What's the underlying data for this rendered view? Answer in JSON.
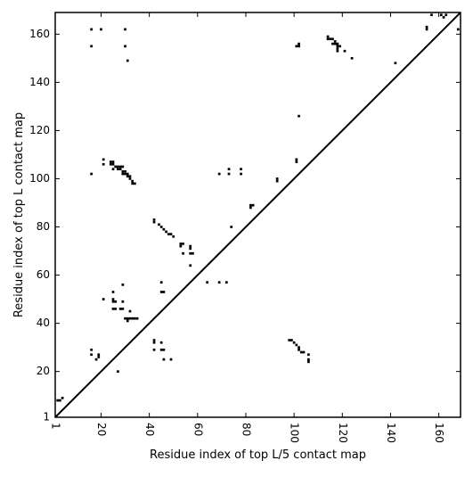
{
  "chart_data": {
    "type": "heatmap",
    "subtype": "binary contact map",
    "title": "",
    "xlabel": "Residue index of top L/5 contact map",
    "ylabel": "Residue index of top L contact map",
    "xlim": [
      1,
      169
    ],
    "ylim": [
      1,
      169
    ],
    "xticks": [
      1,
      20,
      40,
      60,
      80,
      100,
      120,
      140,
      160
    ],
    "yticks": [
      1,
      20,
      40,
      60,
      80,
      100,
      120,
      140,
      160
    ],
    "xtick_labels": [
      "1",
      "20",
      "40",
      "60",
      "80",
      "100",
      "120",
      "140",
      "160"
    ],
    "ytick_labels": [
      "1",
      "20",
      "40",
      "60",
      "80",
      "100",
      "120",
      "140",
      "160"
    ],
    "x_tick_label_rotation": "vertical",
    "diagonal_line": true,
    "legend": "none",
    "grid": false,
    "colors": {
      "contact": "#000000",
      "background": "#ffffff",
      "diagonal": "#000000"
    },
    "contacts_lower_triangle_L5": [
      [
        98,
        33
      ],
      [
        99,
        33
      ],
      [
        100,
        32
      ],
      [
        101,
        31
      ],
      [
        102,
        30
      ],
      [
        102,
        29
      ],
      [
        103,
        28
      ],
      [
        104,
        28
      ],
      [
        106,
        27
      ],
      [
        106,
        25
      ],
      [
        106,
        24
      ],
      [
        2,
        8
      ],
      [
        3,
        8
      ],
      [
        4,
        9
      ]
    ],
    "contacts_upper_triangle_L": [
      [
        24,
        107
      ],
      [
        25,
        107
      ],
      [
        24,
        106
      ],
      [
        25,
        106
      ],
      [
        26,
        105
      ],
      [
        27,
        105
      ],
      [
        28,
        105
      ],
      [
        29,
        105
      ],
      [
        27,
        104
      ],
      [
        28,
        104
      ],
      [
        29,
        103
      ],
      [
        30,
        103
      ],
      [
        29,
        102
      ],
      [
        30,
        102
      ],
      [
        31,
        102
      ],
      [
        31,
        101
      ],
      [
        32,
        101
      ],
      [
        32,
        100
      ],
      [
        33,
        99
      ],
      [
        33,
        98
      ],
      [
        34,
        98
      ],
      [
        21,
        108
      ],
      [
        21,
        106
      ],
      [
        25,
        104
      ],
      [
        16,
        102
      ],
      [
        42,
        83
      ],
      [
        42,
        82
      ],
      [
        44,
        81
      ],
      [
        45,
        80
      ],
      [
        46,
        79
      ],
      [
        47,
        78
      ],
      [
        48,
        77
      ],
      [
        49,
        77
      ],
      [
        50,
        76
      ],
      [
        53,
        73
      ],
      [
        54,
        73
      ],
      [
        53,
        72
      ],
      [
        57,
        72
      ],
      [
        57,
        71
      ],
      [
        54,
        69
      ],
      [
        57,
        69
      ],
      [
        58,
        69
      ],
      [
        57,
        64
      ],
      [
        30,
        42
      ],
      [
        31,
        42
      ],
      [
        32,
        42
      ],
      [
        33,
        42
      ],
      [
        34,
        42
      ],
      [
        35,
        42
      ],
      [
        31,
        41
      ],
      [
        32,
        45
      ],
      [
        28,
        46
      ],
      [
        29,
        46
      ],
      [
        25,
        46
      ],
      [
        26,
        46
      ],
      [
        25,
        49
      ],
      [
        26,
        49
      ],
      [
        29,
        49
      ],
      [
        25,
        50
      ],
      [
        21,
        50
      ],
      [
        25,
        53
      ],
      [
        29,
        56
      ],
      [
        45,
        57
      ],
      [
        45,
        53
      ],
      [
        46,
        53
      ],
      [
        42,
        33
      ],
      [
        42,
        32
      ],
      [
        45,
        32
      ],
      [
        45,
        29
      ],
      [
        46,
        29
      ],
      [
        42,
        29
      ],
      [
        46,
        25
      ],
      [
        49,
        25
      ],
      [
        19,
        26
      ],
      [
        19,
        27
      ],
      [
        18,
        25
      ],
      [
        16,
        27
      ],
      [
        16,
        29
      ],
      [
        27,
        20
      ],
      [
        69,
        102
      ],
      [
        73,
        102
      ],
      [
        73,
        104
      ],
      [
        78,
        102
      ],
      [
        78,
        104
      ],
      [
        82,
        88
      ],
      [
        82,
        89
      ],
      [
        83,
        89
      ],
      [
        93,
        100
      ],
      [
        93,
        99
      ],
      [
        101,
        107
      ],
      [
        101,
        108
      ],
      [
        102,
        156
      ],
      [
        101,
        155
      ],
      [
        102,
        155
      ],
      [
        102,
        126
      ],
      [
        74,
        80
      ],
      [
        64,
        57
      ],
      [
        69,
        57
      ],
      [
        72,
        57
      ],
      [
        114,
        159
      ],
      [
        114,
        158
      ],
      [
        115,
        158
      ],
      [
        116,
        158
      ],
      [
        117,
        157
      ],
      [
        116,
        156
      ],
      [
        117,
        156
      ],
      [
        118,
        156
      ],
      [
        118,
        155
      ],
      [
        118,
        154
      ],
      [
        119,
        155
      ],
      [
        118,
        153
      ],
      [
        121,
        153
      ],
      [
        124,
        150
      ],
      [
        142,
        148
      ],
      [
        16,
        162
      ],
      [
        20,
        162
      ],
      [
        30,
        162
      ],
      [
        30,
        155
      ],
      [
        16,
        155
      ],
      [
        31,
        149
      ],
      [
        155,
        163
      ],
      [
        155,
        162
      ],
      [
        157,
        168
      ],
      [
        161,
        168
      ],
      [
        162,
        167
      ],
      [
        163,
        168
      ],
      [
        168,
        162
      ]
    ]
  }
}
